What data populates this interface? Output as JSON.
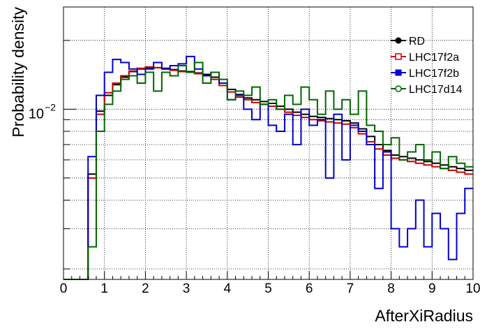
{
  "chart_data": {
    "type": "line",
    "drawstyle": "steps",
    "xlabel": "AfterXiRadius",
    "ylabel": "Probability density",
    "xlim": [
      0,
      10
    ],
    "ylim": [
      0.0018,
      0.028
    ],
    "yscale": "log",
    "grid": true,
    "legend_position": "top-right",
    "x_ticks": [
      0,
      1,
      2,
      3,
      4,
      5,
      6,
      7,
      8,
      9,
      10
    ],
    "y_tick_label": {
      "base": "10",
      "exp": "−2",
      "value": 0.01
    },
    "series": [
      {
        "name": "RD",
        "color": "#000000",
        "marker": "circle-filled",
        "x": [
          0.6,
          0.8,
          1.0,
          1.2,
          1.4,
          1.6,
          1.8,
          2.0,
          2.2,
          2.4,
          2.6,
          2.8,
          3.0,
          3.2,
          3.4,
          3.6,
          3.8,
          4.0,
          4.2,
          4.4,
          4.6,
          4.8,
          5.0,
          5.2,
          5.4,
          5.6,
          5.8,
          6.0,
          6.2,
          6.4,
          6.6,
          6.8,
          7.0,
          7.2,
          7.4,
          7.6,
          7.8,
          8.0,
          8.2,
          8.4,
          8.6,
          8.8,
          9.0,
          9.2,
          9.4,
          9.6,
          9.8
        ],
        "y": [
          0.0052,
          0.0098,
          0.0115,
          0.0128,
          0.0138,
          0.0146,
          0.015,
          0.0152,
          0.0152,
          0.0151,
          0.0149,
          0.0147,
          0.0146,
          0.0144,
          0.0142,
          0.0138,
          0.013,
          0.0122,
          0.0116,
          0.0112,
          0.011,
          0.0108,
          0.0106,
          0.0103,
          0.01,
          0.0097,
          0.0095,
          0.0093,
          0.0092,
          0.0091,
          0.009,
          0.0089,
          0.0087,
          0.0082,
          0.0076,
          0.007,
          0.0066,
          0.0063,
          0.0062,
          0.0061,
          0.006,
          0.0059,
          0.0058,
          0.0057,
          0.0056,
          0.0055,
          0.0054
        ]
      },
      {
        "name": "LHC17f2a",
        "color": "#cc0000",
        "marker": "square-open",
        "x": [
          0.6,
          0.8,
          1.0,
          1.2,
          1.4,
          1.6,
          1.8,
          2.0,
          2.2,
          2.4,
          2.6,
          2.8,
          3.0,
          3.2,
          3.4,
          3.6,
          3.8,
          4.0,
          4.2,
          4.4,
          4.6,
          4.8,
          5.0,
          5.2,
          5.4,
          5.6,
          5.8,
          6.0,
          6.2,
          6.4,
          6.6,
          6.8,
          7.0,
          7.2,
          7.4,
          7.6,
          7.8,
          8.0,
          8.2,
          8.4,
          8.6,
          8.8,
          9.0,
          9.2,
          9.4,
          9.6,
          9.8
        ],
        "y": [
          0.005,
          0.0095,
          0.0118,
          0.013,
          0.014,
          0.0147,
          0.0151,
          0.0153,
          0.0152,
          0.015,
          0.0148,
          0.0146,
          0.0145,
          0.0143,
          0.014,
          0.0135,
          0.0127,
          0.0119,
          0.0113,
          0.011,
          0.0107,
          0.0105,
          0.0103,
          0.01,
          0.0097,
          0.0094,
          0.0092,
          0.009,
          0.0089,
          0.0088,
          0.0087,
          0.0086,
          0.0083,
          0.0078,
          0.0072,
          0.0067,
          0.0063,
          0.0061,
          0.006,
          0.0059,
          0.0058,
          0.0057,
          0.0056,
          0.0055,
          0.0054,
          0.0053,
          0.0052
        ]
      },
      {
        "name": "LHC17f2b",
        "color": "#0000cc",
        "marker": "square-filled",
        "x": [
          0.6,
          0.8,
          1.0,
          1.2,
          1.4,
          1.6,
          1.8,
          2.0,
          2.2,
          2.4,
          2.6,
          2.8,
          3.0,
          3.2,
          3.4,
          3.6,
          3.8,
          4.0,
          4.2,
          4.4,
          4.6,
          4.8,
          5.0,
          5.2,
          5.4,
          5.6,
          5.8,
          6.0,
          6.2,
          6.4,
          6.6,
          6.8,
          7.0,
          7.2,
          7.4,
          7.6,
          7.8,
          8.0,
          8.2,
          8.4,
          8.6,
          8.8,
          9.0,
          9.2,
          9.4,
          9.6,
          9.8
        ],
        "y": [
          0.0062,
          0.0115,
          0.0145,
          0.0165,
          0.016,
          0.015,
          0.0142,
          0.015,
          0.016,
          0.015,
          0.0155,
          0.0158,
          0.017,
          0.015,
          0.014,
          0.0145,
          0.013,
          0.011,
          0.0115,
          0.01,
          0.009,
          0.0105,
          0.0085,
          0.008,
          0.0095,
          0.007,
          0.01,
          0.0085,
          0.009,
          0.005,
          0.0095,
          0.006,
          0.0085,
          0.008,
          0.007,
          0.0045,
          0.0065,
          0.003,
          0.0025,
          0.003,
          0.004,
          0.0025,
          0.0035,
          0.003,
          0.0022,
          0.0035,
          0.0045
        ]
      },
      {
        "name": "LHC17d14",
        "color": "#006600",
        "marker": "circle-open",
        "x": [
          0.6,
          0.8,
          1.0,
          1.2,
          1.4,
          1.6,
          1.8,
          2.0,
          2.2,
          2.4,
          2.6,
          2.8,
          3.0,
          3.2,
          3.4,
          3.6,
          3.8,
          4.0,
          4.2,
          4.4,
          4.6,
          4.8,
          5.0,
          5.2,
          5.4,
          5.6,
          5.8,
          6.0,
          6.2,
          6.4,
          6.6,
          6.8,
          7.0,
          7.2,
          7.4,
          7.6,
          7.8,
          8.0,
          8.2,
          8.4,
          8.6,
          8.8,
          9.0,
          9.2,
          9.4,
          9.6,
          9.8
        ],
        "y": [
          0.0025,
          0.008,
          0.0105,
          0.012,
          0.0135,
          0.014,
          0.013,
          0.0145,
          0.012,
          0.0145,
          0.014,
          0.0155,
          0.0145,
          0.016,
          0.013,
          0.0145,
          0.0135,
          0.011,
          0.012,
          0.0115,
          0.0125,
          0.0105,
          0.011,
          0.01,
          0.0115,
          0.0105,
          0.0125,
          0.011,
          0.0095,
          0.012,
          0.01,
          0.011,
          0.0095,
          0.012,
          0.0085,
          0.008,
          0.007,
          0.0075,
          0.006,
          0.0065,
          0.007,
          0.006,
          0.0065,
          0.0055,
          0.0062,
          0.0058,
          0.0056
        ]
      }
    ]
  }
}
